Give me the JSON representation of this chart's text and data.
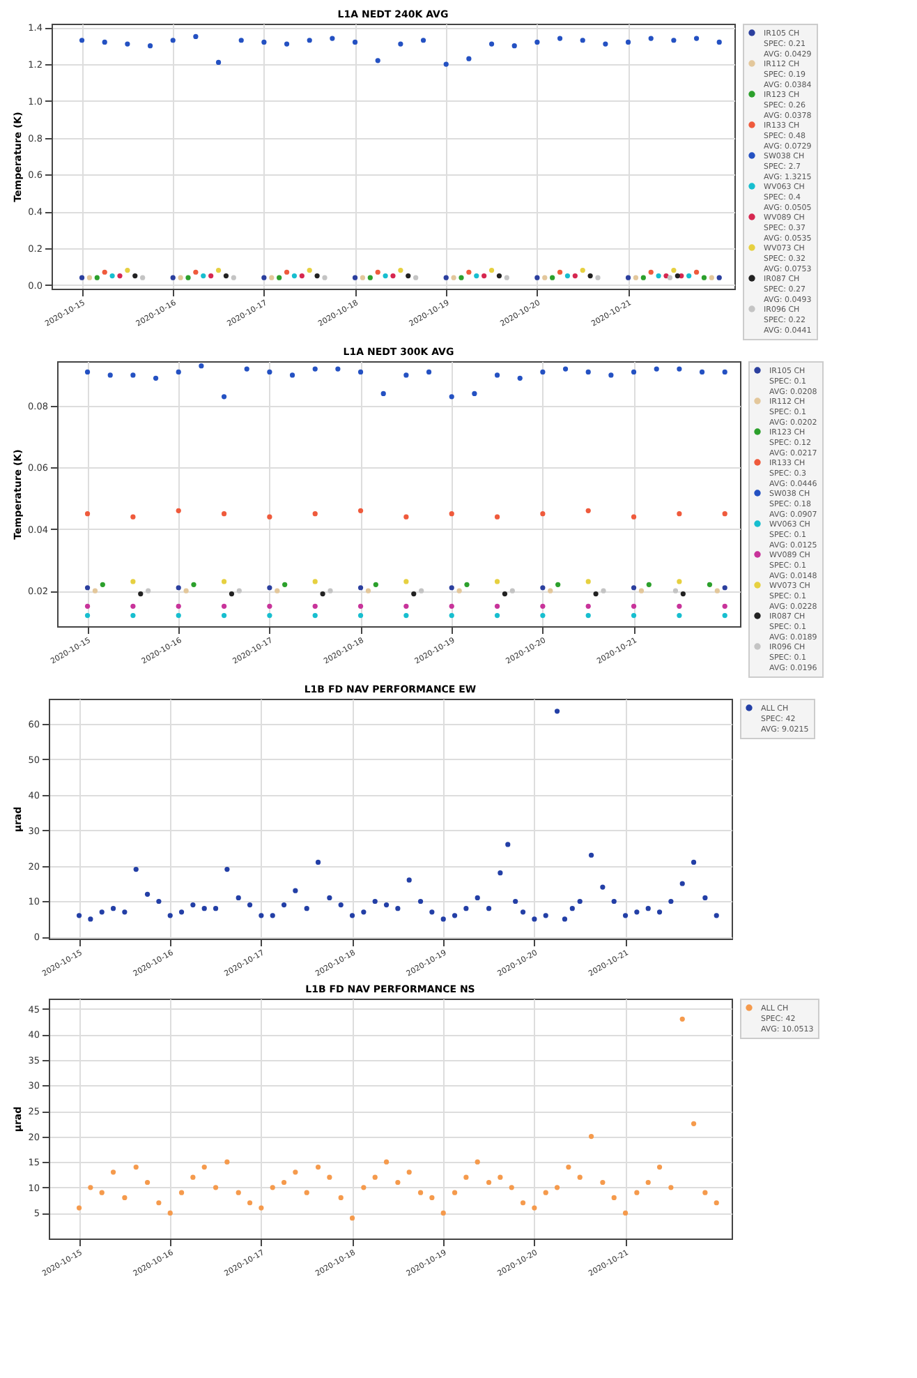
{
  "chart_data": [
    {
      "type": "scatter",
      "title": "L1A NEDT 240K AVG",
      "ylabel": "Temperature (K)",
      "marker": "circle",
      "grid": true,
      "legend": "right",
      "xlim": [
        "2020-10-14T16:00",
        "2020-10-22T04:00"
      ],
      "xticks": [
        "2020-10-15",
        "2020-10-16",
        "2020-10-17",
        "2020-10-18",
        "2020-10-19",
        "2020-10-20",
        "2020-10-21"
      ],
      "ylim": [
        -0.02,
        1.42
      ],
      "yticks": [
        {
          "value": 0,
          "label": "0.0"
        },
        0.2,
        0.4,
        0.6,
        0.8,
        {
          "value": 1,
          "label": "1.0"
        },
        1.2,
        1.4
      ],
      "series": [
        {
          "name": "IR105 CH\nSPEC: 0.21\nAVG: 0.0429",
          "color": "#2b3f9e",
          "x": [
            "2020-10-15T00:00",
            "2020-10-16T00:00",
            "2020-10-17T00:00",
            "2020-10-18T00:00",
            "2020-10-19T00:00",
            "2020-10-20T00:00",
            "2020-10-21T00:00",
            "2020-10-22T00:00"
          ],
          "values": [
            0.04,
            0.04,
            0.04,
            0.04,
            0.04,
            0.04,
            0.04,
            0.04
          ]
        },
        {
          "name": "IR112 CH\nSPEC: 0.19\nAVG: 0.0384",
          "color": "#e3c79b",
          "x": [
            "2020-10-15T02:00",
            "2020-10-16T02:00",
            "2020-10-17T02:00",
            "2020-10-18T02:00",
            "2020-10-19T02:00",
            "2020-10-20T02:00",
            "2020-10-21T02:00",
            "2020-10-21T22:00"
          ],
          "values": [
            0.04,
            0.04,
            0.04,
            0.04,
            0.04,
            0.04,
            0.04,
            0.04
          ]
        },
        {
          "name": "IR123 CH\nSPEC: 0.26\nAVG: 0.0378",
          "color": "#2ca02c",
          "x": [
            "2020-10-15T04:00",
            "2020-10-16T04:00",
            "2020-10-17T04:00",
            "2020-10-18T04:00",
            "2020-10-19T04:00",
            "2020-10-20T04:00",
            "2020-10-21T04:00",
            "2020-10-21T20:00"
          ],
          "values": [
            0.04,
            0.04,
            0.04,
            0.04,
            0.04,
            0.04,
            0.04,
            0.04
          ]
        },
        {
          "name": "IR133 CH\nSPEC: 0.48\nAVG: 0.0729",
          "color": "#ef5a3c",
          "x": [
            "2020-10-15T06:00",
            "2020-10-16T06:00",
            "2020-10-17T06:00",
            "2020-10-18T06:00",
            "2020-10-19T06:00",
            "2020-10-20T06:00",
            "2020-10-21T06:00",
            "2020-10-21T18:00"
          ],
          "values": [
            0.07,
            0.07,
            0.07,
            0.07,
            0.07,
            0.07,
            0.07,
            0.07
          ]
        },
        {
          "name": "SW038 CH\nSPEC: 2.7\nAVG: 1.3215",
          "color": "#2451c2",
          "x": [
            "2020-10-15T00:00",
            "2020-10-15T06:00",
            "2020-10-15T12:00",
            "2020-10-15T18:00",
            "2020-10-16T00:00",
            "2020-10-16T06:00",
            "2020-10-16T12:00",
            "2020-10-16T18:00",
            "2020-10-17T00:00",
            "2020-10-17T06:00",
            "2020-10-17T12:00",
            "2020-10-17T18:00",
            "2020-10-18T00:00",
            "2020-10-18T06:00",
            "2020-10-18T12:00",
            "2020-10-18T18:00",
            "2020-10-19T00:00",
            "2020-10-19T06:00",
            "2020-10-19T12:00",
            "2020-10-19T18:00",
            "2020-10-20T00:00",
            "2020-10-20T06:00",
            "2020-10-20T12:00",
            "2020-10-20T18:00",
            "2020-10-21T00:00",
            "2020-10-21T06:00",
            "2020-10-21T12:00",
            "2020-10-21T18:00",
            "2020-10-22T00:00"
          ],
          "values": [
            1.33,
            1.32,
            1.31,
            1.3,
            1.33,
            1.35,
            1.21,
            1.33,
            1.32,
            1.31,
            1.33,
            1.34,
            1.32,
            1.22,
            1.31,
            1.33,
            1.2,
            1.23,
            1.31,
            1.3,
            1.32,
            1.34,
            1.33,
            1.31,
            1.32,
            1.34,
            1.33,
            1.34,
            1.32
          ]
        },
        {
          "name": "WV063 CH\nSPEC: 0.4\nAVG: 0.0505",
          "color": "#17becf",
          "x": [
            "2020-10-15T08:00",
            "2020-10-16T08:00",
            "2020-10-17T08:00",
            "2020-10-18T08:00",
            "2020-10-19T08:00",
            "2020-10-20T08:00",
            "2020-10-21T08:00",
            "2020-10-21T16:00"
          ],
          "values": [
            0.05,
            0.05,
            0.05,
            0.05,
            0.05,
            0.05,
            0.05,
            0.05
          ]
        },
        {
          "name": "WV089 CH\nSPEC: 0.37\nAVG: 0.0535",
          "color": "#d62750",
          "x": [
            "2020-10-15T10:00",
            "2020-10-16T10:00",
            "2020-10-17T10:00",
            "2020-10-18T10:00",
            "2020-10-19T10:00",
            "2020-10-20T10:00",
            "2020-10-21T10:00",
            "2020-10-21T14:00"
          ],
          "values": [
            0.05,
            0.05,
            0.05,
            0.05,
            0.05,
            0.05,
            0.05,
            0.05
          ]
        },
        {
          "name": "WV073 CH\nSPEC: 0.32\nAVG: 0.0753",
          "color": "#e6d040",
          "x": [
            "2020-10-15T12:00",
            "2020-10-16T12:00",
            "2020-10-17T12:00",
            "2020-10-18T12:00",
            "2020-10-19T12:00",
            "2020-10-20T12:00",
            "2020-10-21T12:00"
          ],
          "values": [
            0.08,
            0.08,
            0.08,
            0.08,
            0.08,
            0.08,
            0.08
          ]
        },
        {
          "name": "IR087 CH\nSPEC: 0.27\nAVG: 0.0493",
          "color": "#222222",
          "x": [
            "2020-10-15T14:00",
            "2020-10-16T14:00",
            "2020-10-17T14:00",
            "2020-10-18T14:00",
            "2020-10-19T14:00",
            "2020-10-20T14:00",
            "2020-10-21T13:00"
          ],
          "values": [
            0.05,
            0.05,
            0.05,
            0.05,
            0.05,
            0.05,
            0.05
          ]
        },
        {
          "name": "IR096 CH\nSPEC: 0.22\nAVG: 0.0441",
          "color": "#c4c4c4",
          "x": [
            "2020-10-15T16:00",
            "2020-10-16T16:00",
            "2020-10-17T16:00",
            "2020-10-18T16:00",
            "2020-10-19T16:00",
            "2020-10-20T16:00",
            "2020-10-21T11:00"
          ],
          "values": [
            0.04,
            0.04,
            0.04,
            0.04,
            0.04,
            0.04,
            0.04
          ]
        }
      ]
    },
    {
      "type": "scatter",
      "title": "L1A NEDT 300K AVG",
      "ylabel": "Temperature (K)",
      "marker": "circle",
      "grid": true,
      "legend": "right",
      "xlim": [
        "2020-10-14T16:00",
        "2020-10-22T04:00"
      ],
      "xticks": [
        "2020-10-15",
        "2020-10-16",
        "2020-10-17",
        "2020-10-18",
        "2020-10-19",
        "2020-10-20",
        "2020-10-21"
      ],
      "ylim": [
        0.0085,
        0.0945
      ],
      "yticks": [
        0.02,
        0.04,
        0.06,
        0.08
      ],
      "series": [
        {
          "name": "IR105 CH\nSPEC: 0.1\nAVG: 0.0208",
          "color": "#2b3f9e",
          "x": [
            "2020-10-15T00:00",
            "2020-10-16T00:00",
            "2020-10-17T00:00",
            "2020-10-18T00:00",
            "2020-10-19T00:00",
            "2020-10-20T00:00",
            "2020-10-21T00:00",
            "2020-10-22T00:00"
          ],
          "values": [
            0.021,
            0.021,
            0.021,
            0.021,
            0.021,
            0.021,
            0.021,
            0.021
          ]
        },
        {
          "name": "IR112 CH\nSPEC: 0.1\nAVG: 0.0202",
          "color": "#e3c79b",
          "x": [
            "2020-10-15T02:00",
            "2020-10-16T02:00",
            "2020-10-17T02:00",
            "2020-10-18T02:00",
            "2020-10-19T02:00",
            "2020-10-20T02:00",
            "2020-10-21T02:00",
            "2020-10-21T22:00"
          ],
          "values": [
            0.02,
            0.02,
            0.02,
            0.02,
            0.02,
            0.02,
            0.02,
            0.02
          ]
        },
        {
          "name": "IR123 CH\nSPEC: 0.12\nAVG: 0.0217",
          "color": "#2ca02c",
          "x": [
            "2020-10-15T04:00",
            "2020-10-16T04:00",
            "2020-10-17T04:00",
            "2020-10-18T04:00",
            "2020-10-19T04:00",
            "2020-10-20T04:00",
            "2020-10-21T04:00",
            "2020-10-21T20:00"
          ],
          "values": [
            0.022,
            0.022,
            0.022,
            0.022,
            0.022,
            0.022,
            0.022,
            0.022
          ]
        },
        {
          "name": "IR133 CH\nSPEC: 0.3\nAVG: 0.0446",
          "color": "#ef5a3c",
          "x": [
            "2020-10-15T00:00",
            "2020-10-15T12:00",
            "2020-10-16T00:00",
            "2020-10-16T12:00",
            "2020-10-17T00:00",
            "2020-10-17T12:00",
            "2020-10-18T00:00",
            "2020-10-18T12:00",
            "2020-10-19T00:00",
            "2020-10-19T12:00",
            "2020-10-20T00:00",
            "2020-10-20T12:00",
            "2020-10-21T00:00",
            "2020-10-21T12:00",
            "2020-10-22T00:00"
          ],
          "values": [
            0.045,
            0.044,
            0.046,
            0.045,
            0.044,
            0.045,
            0.046,
            0.044,
            0.045,
            0.044,
            0.045,
            0.046,
            0.044,
            0.045,
            0.045
          ]
        },
        {
          "name": "SW038 CH\nSPEC: 0.18\nAVG: 0.0907",
          "color": "#2451c2",
          "x": [
            "2020-10-15T00:00",
            "2020-10-15T06:00",
            "2020-10-15T12:00",
            "2020-10-15T18:00",
            "2020-10-16T00:00",
            "2020-10-16T06:00",
            "2020-10-16T12:00",
            "2020-10-16T18:00",
            "2020-10-17T00:00",
            "2020-10-17T06:00",
            "2020-10-17T12:00",
            "2020-10-17T18:00",
            "2020-10-18T00:00",
            "2020-10-18T06:00",
            "2020-10-18T12:00",
            "2020-10-18T18:00",
            "2020-10-19T00:00",
            "2020-10-19T06:00",
            "2020-10-19T12:00",
            "2020-10-19T18:00",
            "2020-10-20T00:00",
            "2020-10-20T06:00",
            "2020-10-20T12:00",
            "2020-10-20T18:00",
            "2020-10-21T00:00",
            "2020-10-21T06:00",
            "2020-10-21T12:00",
            "2020-10-21T18:00",
            "2020-10-22T00:00"
          ],
          "values": [
            0.091,
            0.09,
            0.09,
            0.089,
            0.091,
            0.093,
            0.083,
            0.092,
            0.091,
            0.09,
            0.092,
            0.092,
            0.091,
            0.084,
            0.09,
            0.091,
            0.083,
            0.084,
            0.09,
            0.089,
            0.091,
            0.092,
            0.091,
            0.09,
            0.091,
            0.092,
            0.092,
            0.091,
            0.091
          ]
        },
        {
          "name": "WV063 CH\nSPEC: 0.1\nAVG: 0.0125",
          "color": "#17becf",
          "x": [
            "2020-10-15T00:00",
            "2020-10-15T12:00",
            "2020-10-16T00:00",
            "2020-10-16T12:00",
            "2020-10-17T00:00",
            "2020-10-17T12:00",
            "2020-10-18T00:00",
            "2020-10-18T12:00",
            "2020-10-19T00:00",
            "2020-10-19T12:00",
            "2020-10-20T00:00",
            "2020-10-20T12:00",
            "2020-10-21T00:00",
            "2020-10-21T12:00",
            "2020-10-22T00:00"
          ],
          "values": [
            0.012,
            0.012,
            0.012,
            0.012,
            0.012,
            0.012,
            0.012,
            0.012,
            0.012,
            0.012,
            0.012,
            0.012,
            0.012,
            0.012,
            0.012
          ]
        },
        {
          "name": "WV089 CH\nSPEC: 0.1\nAVG: 0.0148",
          "color": "#c8339a",
          "x": [
            "2020-10-15T00:00",
            "2020-10-15T12:00",
            "2020-10-16T00:00",
            "2020-10-16T12:00",
            "2020-10-17T00:00",
            "2020-10-17T12:00",
            "2020-10-18T00:00",
            "2020-10-18T12:00",
            "2020-10-19T00:00",
            "2020-10-19T12:00",
            "2020-10-20T00:00",
            "2020-10-20T12:00",
            "2020-10-21T00:00",
            "2020-10-21T12:00",
            "2020-10-22T00:00"
          ],
          "values": [
            0.015,
            0.015,
            0.015,
            0.015,
            0.015,
            0.015,
            0.015,
            0.015,
            0.015,
            0.015,
            0.015,
            0.015,
            0.015,
            0.015,
            0.015
          ]
        },
        {
          "name": "WV073 CH\nSPEC: 0.1\nAVG: 0.0228",
          "color": "#e6d040",
          "x": [
            "2020-10-15T12:00",
            "2020-10-16T12:00",
            "2020-10-17T12:00",
            "2020-10-18T12:00",
            "2020-10-19T12:00",
            "2020-10-20T12:00",
            "2020-10-21T12:00"
          ],
          "values": [
            0.023,
            0.023,
            0.023,
            0.023,
            0.023,
            0.023,
            0.023
          ]
        },
        {
          "name": "IR087 CH\nSPEC: 0.1\nAVG: 0.0189",
          "color": "#222222",
          "x": [
            "2020-10-15T14:00",
            "2020-10-16T14:00",
            "2020-10-17T14:00",
            "2020-10-18T14:00",
            "2020-10-19T14:00",
            "2020-10-20T14:00",
            "2020-10-21T13:00"
          ],
          "values": [
            0.019,
            0.019,
            0.019,
            0.019,
            0.019,
            0.019,
            0.019
          ]
        },
        {
          "name": "IR096 CH\nSPEC: 0.1\nAVG: 0.0196",
          "color": "#c4c4c4",
          "x": [
            "2020-10-15T16:00",
            "2020-10-16T16:00",
            "2020-10-17T16:00",
            "2020-10-18T16:00",
            "2020-10-19T16:00",
            "2020-10-20T16:00",
            "2020-10-21T11:00"
          ],
          "values": [
            0.02,
            0.02,
            0.02,
            0.02,
            0.02,
            0.02,
            0.02
          ]
        }
      ]
    },
    {
      "type": "scatter",
      "title": "L1B FD NAV PERFORMANCE EW",
      "ylabel": "μrad",
      "marker": "circle",
      "grid": true,
      "legend": "right",
      "xlim": [
        "2020-10-14T16:00",
        "2020-10-22T04:00"
      ],
      "xticks": [
        "2020-10-15",
        "2020-10-16",
        "2020-10-17",
        "2020-10-18",
        "2020-10-19",
        "2020-10-20",
        "2020-10-21"
      ],
      "ylim": [
        -0.5,
        67
      ],
      "yticks": [
        0,
        10,
        20,
        30,
        40,
        50,
        60
      ],
      "series": [
        {
          "name": "ALL CH\nSPEC: 42\nAVG: 9.0215",
          "color": "#233fa6",
          "x": [
            "2020-10-15T00:00",
            "2020-10-15T03:00",
            "2020-10-15T06:00",
            "2020-10-15T09:00",
            "2020-10-15T12:00",
            "2020-10-15T15:00",
            "2020-10-15T18:00",
            "2020-10-15T21:00",
            "2020-10-16T00:00",
            "2020-10-16T03:00",
            "2020-10-16T06:00",
            "2020-10-16T09:00",
            "2020-10-16T12:00",
            "2020-10-16T15:00",
            "2020-10-16T18:00",
            "2020-10-16T21:00",
            "2020-10-17T00:00",
            "2020-10-17T03:00",
            "2020-10-17T06:00",
            "2020-10-17T09:00",
            "2020-10-17T12:00",
            "2020-10-17T15:00",
            "2020-10-17T18:00",
            "2020-10-17T21:00",
            "2020-10-18T00:00",
            "2020-10-18T03:00",
            "2020-10-18T06:00",
            "2020-10-18T09:00",
            "2020-10-18T12:00",
            "2020-10-18T15:00",
            "2020-10-18T18:00",
            "2020-10-18T21:00",
            "2020-10-19T00:00",
            "2020-10-19T03:00",
            "2020-10-19T06:00",
            "2020-10-19T09:00",
            "2020-10-19T12:00",
            "2020-10-19T15:00",
            "2020-10-19T17:00",
            "2020-10-19T19:00",
            "2020-10-19T21:00",
            "2020-10-20T00:00",
            "2020-10-20T03:00",
            "2020-10-20T06:00",
            "2020-10-20T08:00",
            "2020-10-20T10:00",
            "2020-10-20T12:00",
            "2020-10-20T15:00",
            "2020-10-20T18:00",
            "2020-10-20T21:00",
            "2020-10-21T00:00",
            "2020-10-21T03:00",
            "2020-10-21T06:00",
            "2020-10-21T09:00",
            "2020-10-21T12:00",
            "2020-10-21T15:00",
            "2020-10-21T18:00",
            "2020-10-21T21:00",
            "2020-10-22T00:00"
          ],
          "values": [
            6,
            5,
            7,
            8,
            7,
            19,
            12,
            10,
            6,
            7,
            9,
            8,
            8,
            19,
            11,
            9,
            6,
            6,
            9,
            13,
            8,
            21,
            11,
            9,
            6,
            7,
            10,
            9,
            8,
            16,
            10,
            7,
            5,
            6,
            8,
            11,
            8,
            18,
            26,
            10,
            7,
            5,
            6,
            63.5,
            5,
            8,
            10,
            23,
            14,
            10,
            6,
            7,
            8,
            7,
            10,
            15,
            21,
            11,
            6
          ]
        }
      ]
    },
    {
      "type": "scatter",
      "title": "L1B FD NAV PERFORMANCE NS",
      "ylabel": "μrad",
      "marker": "circle",
      "grid": true,
      "legend": "right",
      "xlim": [
        "2020-10-14T16:00",
        "2020-10-22T04:00"
      ],
      "xticks": [
        "2020-10-15",
        "2020-10-16",
        "2020-10-17",
        "2020-10-18",
        "2020-10-19",
        "2020-10-20",
        "2020-10-21"
      ],
      "ylim": [
        0,
        47
      ],
      "yticks": [
        5,
        10,
        15,
        20,
        25,
        30,
        35,
        40,
        45
      ],
      "series": [
        {
          "name": "ALL CH\nSPEC: 42\nAVG: 10.0513",
          "color": "#f59a4c",
          "x": [
            "2020-10-15T00:00",
            "2020-10-15T03:00",
            "2020-10-15T06:00",
            "2020-10-15T09:00",
            "2020-10-15T12:00",
            "2020-10-15T15:00",
            "2020-10-15T18:00",
            "2020-10-15T21:00",
            "2020-10-16T00:00",
            "2020-10-16T03:00",
            "2020-10-16T06:00",
            "2020-10-16T09:00",
            "2020-10-16T12:00",
            "2020-10-16T15:00",
            "2020-10-16T18:00",
            "2020-10-16T21:00",
            "2020-10-17T00:00",
            "2020-10-17T03:00",
            "2020-10-17T06:00",
            "2020-10-17T09:00",
            "2020-10-17T12:00",
            "2020-10-17T15:00",
            "2020-10-17T18:00",
            "2020-10-17T21:00",
            "2020-10-18T00:00",
            "2020-10-18T03:00",
            "2020-10-18T06:00",
            "2020-10-18T09:00",
            "2020-10-18T12:00",
            "2020-10-18T15:00",
            "2020-10-18T18:00",
            "2020-10-18T21:00",
            "2020-10-19T00:00",
            "2020-10-19T03:00",
            "2020-10-19T06:00",
            "2020-10-19T09:00",
            "2020-10-19T12:00",
            "2020-10-19T15:00",
            "2020-10-19T18:00",
            "2020-10-19T21:00",
            "2020-10-20T00:00",
            "2020-10-20T03:00",
            "2020-10-20T06:00",
            "2020-10-20T09:00",
            "2020-10-20T12:00",
            "2020-10-20T15:00",
            "2020-10-20T18:00",
            "2020-10-20T21:00",
            "2020-10-21T00:00",
            "2020-10-21T03:00",
            "2020-10-21T06:00",
            "2020-10-21T09:00",
            "2020-10-21T12:00",
            "2020-10-21T15:00",
            "2020-10-21T18:00",
            "2020-10-21T21:00",
            "2020-10-22T00:00"
          ],
          "values": [
            6,
            10,
            9,
            13,
            8,
            14,
            11,
            7,
            5,
            9,
            12,
            14,
            10,
            15,
            9,
            7,
            6,
            10,
            11,
            13,
            9,
            14,
            12,
            8,
            4,
            10,
            12,
            15,
            11,
            13,
            9,
            8,
            5,
            9,
            12,
            15,
            11,
            12,
            10,
            7,
            6,
            9,
            10,
            14,
            12,
            20,
            11,
            8,
            5,
            9,
            11,
            14,
            10,
            43,
            22.5,
            9,
            7
          ]
        }
      ]
    }
  ]
}
